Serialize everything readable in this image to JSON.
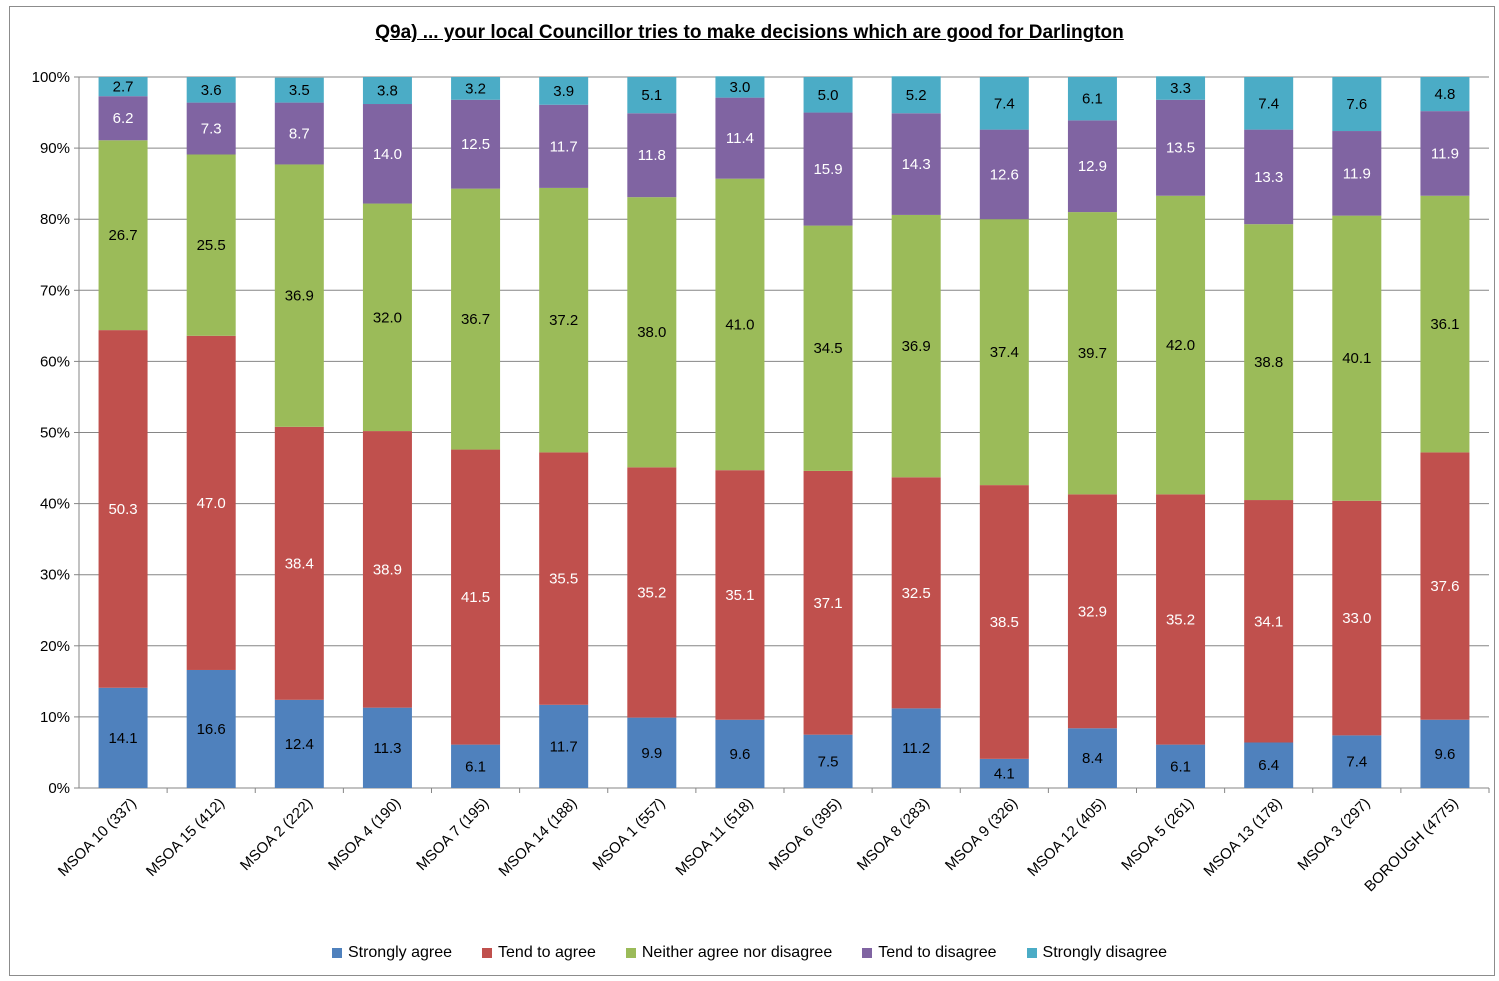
{
  "chart_data": {
    "type": "bar",
    "stacked": true,
    "percent": true,
    "title": "Q9a) ... your local Councillor tries to make decisions which are good for Darlington",
    "xlabel": "",
    "ylabel": "",
    "ylim": [
      0,
      100
    ],
    "yticks": [
      "0%",
      "10%",
      "20%",
      "30%",
      "40%",
      "50%",
      "60%",
      "70%",
      "80%",
      "90%",
      "100%"
    ],
    "grid": true,
    "legend": "bottom",
    "categories": [
      "MSOA 10 (337)",
      "MSOA 15 (412)",
      "MSOA 2 (222)",
      "MSOA 4 (190)",
      "MSOA 7 (195)",
      "MSOA 14 (188)",
      "MSOA 1 (557)",
      "MSOA 11 (518)",
      "MSOA 6 (395)",
      "MSOA 8 (283)",
      "MSOA 9 (326)",
      "MSOA 12 (405)",
      "MSOA 5 (261)",
      "MSOA 13 (178)",
      "MSOA 3 (297)",
      "BOROUGH (4775)"
    ],
    "series": [
      {
        "name": "Strongly agree",
        "color": "#4f81bd",
        "label_color": "#000000",
        "values": [
          14.1,
          16.6,
          12.4,
          11.3,
          6.1,
          11.7,
          9.9,
          9.6,
          7.5,
          11.2,
          4.1,
          8.4,
          6.1,
          6.4,
          7.4,
          9.6
        ]
      },
      {
        "name": "Tend to agree",
        "color": "#c0504d",
        "label_color": "#ffffff",
        "values": [
          50.3,
          47.0,
          38.4,
          38.9,
          41.5,
          35.5,
          35.2,
          35.1,
          37.1,
          32.5,
          38.5,
          32.9,
          35.2,
          34.1,
          33.0,
          37.6
        ]
      },
      {
        "name": "Neither agree nor disagree",
        "color": "#9bbb59",
        "label_color": "#000000",
        "values": [
          26.7,
          25.5,
          36.9,
          32.0,
          36.7,
          37.2,
          38.0,
          41.0,
          34.5,
          36.9,
          37.4,
          39.7,
          42.0,
          38.8,
          40.1,
          36.1
        ]
      },
      {
        "name": "Tend to disagree",
        "color": "#8064a2",
        "label_color": "#ffffff",
        "values": [
          6.2,
          7.3,
          8.7,
          14.0,
          12.5,
          11.7,
          11.8,
          11.4,
          15.9,
          14.3,
          12.6,
          12.9,
          13.5,
          13.3,
          11.9,
          11.9
        ]
      },
      {
        "name": "Strongly disagree",
        "color": "#4bacc6",
        "label_color": "#000000",
        "values": [
          2.7,
          3.6,
          3.5,
          3.8,
          3.2,
          3.9,
          5.1,
          3.0,
          5.0,
          5.2,
          7.4,
          6.1,
          3.3,
          7.4,
          7.6,
          4.8
        ]
      }
    ]
  }
}
